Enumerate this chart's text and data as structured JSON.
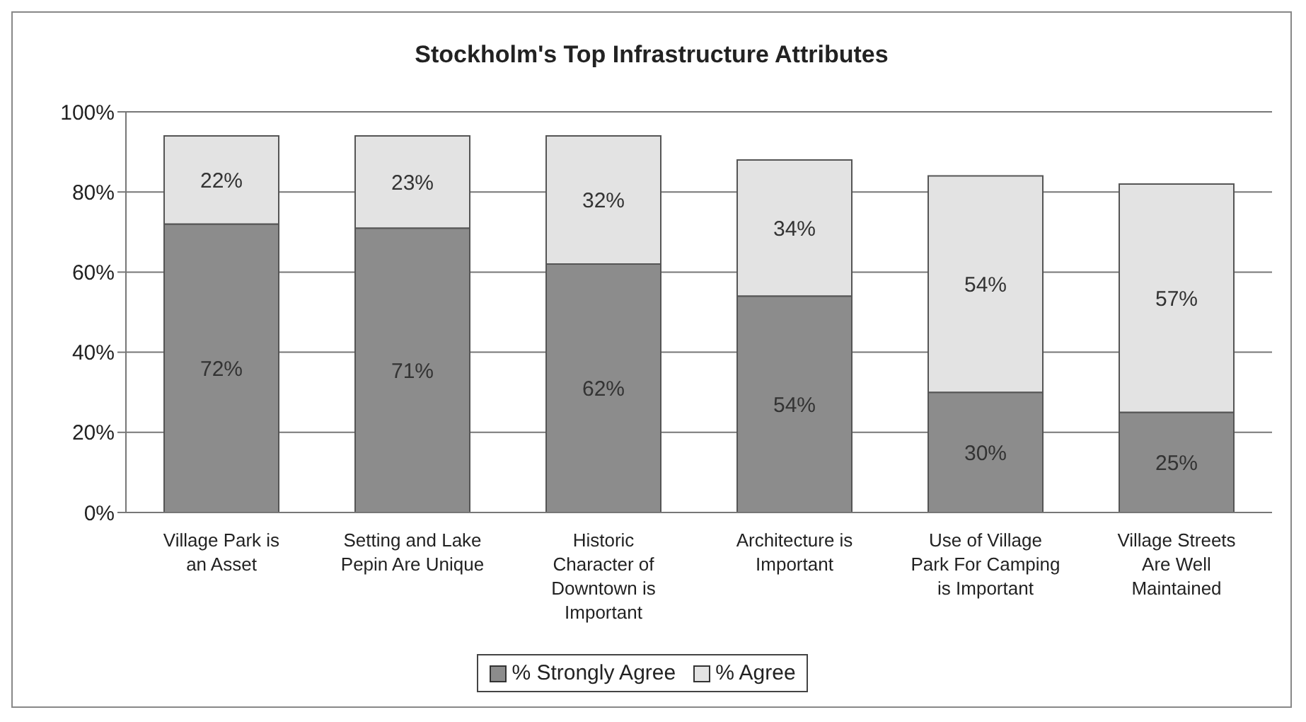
{
  "chart_data": {
    "type": "bar",
    "title": "Stockholm's Top Infrastructure Attributes",
    "categories": [
      "Village Park is an Asset",
      "Setting and Lake Pepin Are Unique",
      "Historic Character of Downtown is Important",
      "Architecture is Important",
      "Use of Village Park For Camping is Important",
      "Village Streets Are Well Maintained"
    ],
    "series": [
      {
        "name": "% Strongly Agree",
        "color": "#8c8c8c",
        "values": [
          72,
          71,
          62,
          54,
          30,
          25
        ],
        "value_labels": [
          "72%",
          "71%",
          "62%",
          "54%",
          "30%",
          "25%"
        ]
      },
      {
        "name": "% Agree",
        "color": "#e3e3e3",
        "values": [
          22,
          23,
          32,
          34,
          54,
          57
        ],
        "value_labels": [
          "22%",
          "23%",
          "32%",
          "34%",
          "54%",
          "57%"
        ]
      }
    ],
    "stacked": true,
    "ylim": [
      0,
      100
    ],
    "yticks": [
      {
        "value": 0,
        "label": "0%"
      },
      {
        "value": 20,
        "label": "20%"
      },
      {
        "value": 40,
        "label": "40%"
      },
      {
        "value": 60,
        "label": "60%"
      },
      {
        "value": 80,
        "label": "80%"
      },
      {
        "value": 100,
        "label": "100%"
      }
    ],
    "grid": "y",
    "legend": "bottom"
  }
}
